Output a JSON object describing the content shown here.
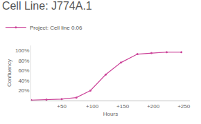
{
  "chart_data": {
    "type": "line",
    "title": "Cell Line: J774A.1",
    "x_label": "Hours",
    "y_label": "Confluency",
    "x": [
      0,
      25,
      50,
      74,
      97,
      122,
      147,
      174,
      197,
      222,
      246
    ],
    "series": [
      {
        "name": "Project: Cell line 0.06",
        "color": "#cc4499",
        "marker": "circle",
        "values": [
          1,
          2,
          3,
          6,
          20,
          52,
          76,
          93,
          95,
          97,
          97
        ]
      }
    ],
    "xlim": [
      0,
      260
    ],
    "xticks": [
      {
        "value": 50,
        "label": "+50"
      },
      {
        "value": 100,
        "label": "+100"
      },
      {
        "value": 150,
        "label": "+150"
      },
      {
        "value": 200,
        "label": "+200"
      },
      {
        "value": 250,
        "label": "+250"
      }
    ],
    "ylim": [
      0,
      110
    ],
    "yticks": [
      {
        "value": 20,
        "label": "20%"
      },
      {
        "value": 40,
        "label": "40%"
      },
      {
        "value": 60,
        "label": "60%"
      },
      {
        "value": 80,
        "label": "80%"
      },
      {
        "value": 100,
        "label": "100%"
      }
    ],
    "grid": false,
    "legend": "top left"
  }
}
